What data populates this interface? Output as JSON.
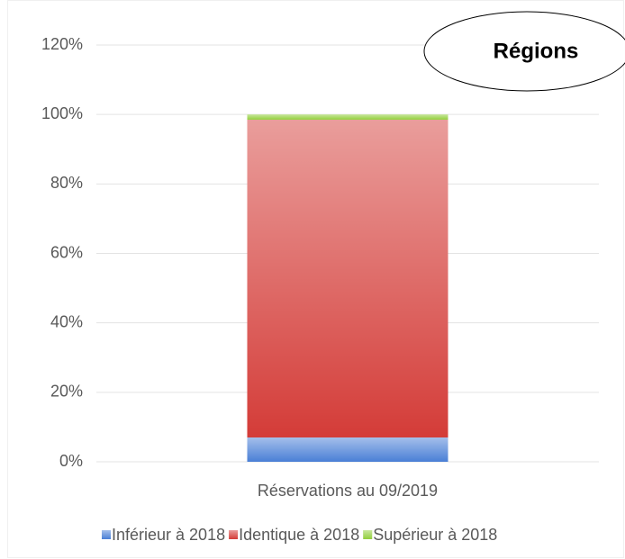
{
  "chart_data": {
    "type": "stacked_bar",
    "annotation": "Régions",
    "categories": [
      "Réservations au 09/2019"
    ],
    "series": [
      {
        "name": "Inférieur à 2018",
        "color": "#4a7fd6",
        "values": [
          7
        ]
      },
      {
        "name": "Identique à 2018",
        "color": "#d43c38",
        "values": [
          91.5
        ]
      },
      {
        "name": "Supérieur à 2018",
        "color": "#92cf3c",
        "values": [
          1.5
        ]
      }
    ],
    "ylim": [
      0,
      120
    ],
    "yticks": [
      {
        "value": 0,
        "label": "0%"
      },
      {
        "value": 20,
        "label": "20%"
      },
      {
        "value": 40,
        "label": "40%"
      },
      {
        "value": 60,
        "label": "60%"
      },
      {
        "value": 80,
        "label": "80%"
      },
      {
        "value": 100,
        "label": "100%"
      },
      {
        "value": 120,
        "label": "120%"
      }
    ],
    "grid": true,
    "legend": "bottom"
  }
}
